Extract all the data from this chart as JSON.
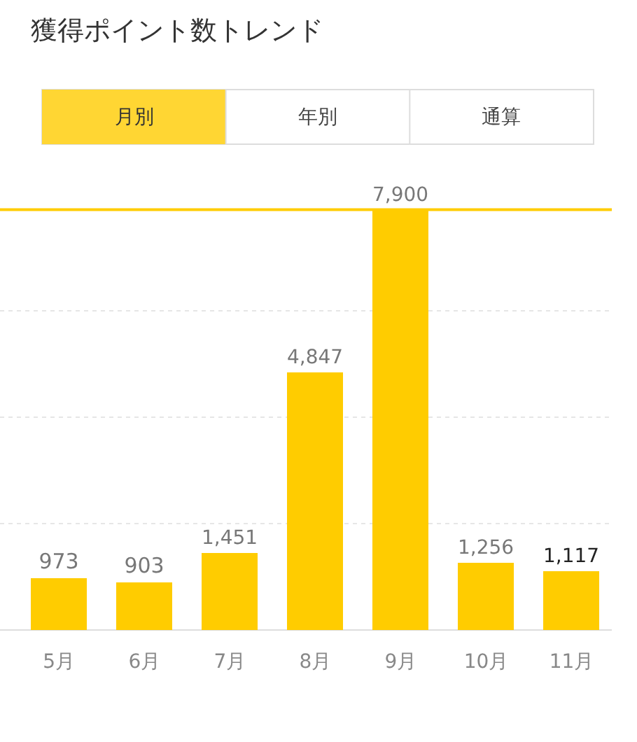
{
  "chart_data": {
    "type": "bar",
    "title": "獲得ポイント数トレンド",
    "annotations": [
      "月別",
      "年別",
      "通算"
    ],
    "categories": [
      "5月",
      "6月",
      "7月",
      "8月",
      "9月",
      "10月",
      "11月"
    ],
    "values": [
      973,
      903,
      1451,
      4847,
      7900,
      1256,
      1117
    ],
    "color": "#ffcc00",
    "value_labels": [
      "973",
      "903",
      "1,451",
      "4,847",
      "7,900",
      "1,256",
      "1,117"
    ],
    "yticks": [
      {
        "value": 2000,
        "label": null
      },
      {
        "value": 4000,
        "label": null
      },
      {
        "value": 6000,
        "label": null
      }
    ],
    "grid": "y",
    "tick_labels": "x",
    "ref_lines": [
      {
        "axis": "y",
        "value": 7900,
        "color": "#ffcc00"
      }
    ]
  }
}
